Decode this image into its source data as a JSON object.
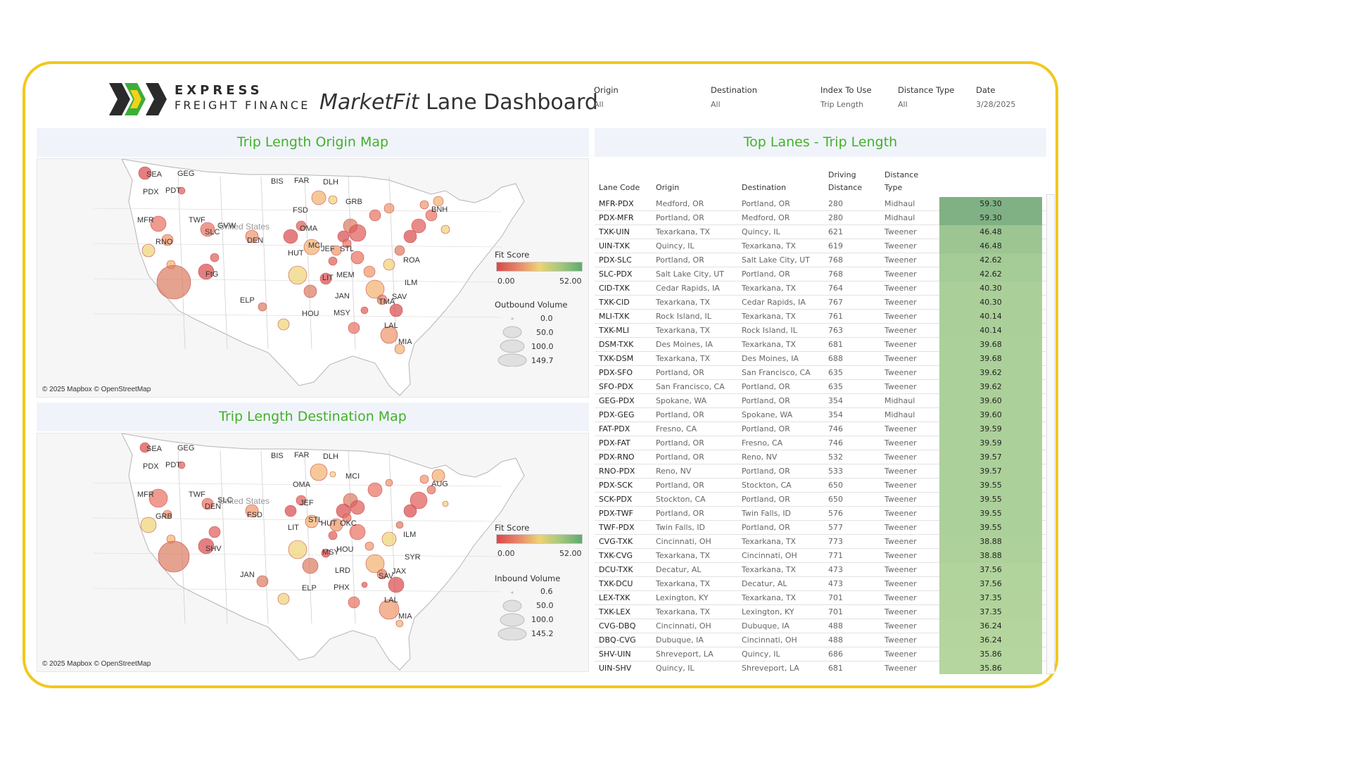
{
  "brand": {
    "line1": "EXPRESS",
    "line2": "FREIGHT FINANCE"
  },
  "title": {
    "italic": "MarketFit",
    "rest": " Lane Dashboard"
  },
  "filters": [
    {
      "label": "Origin",
      "value": "All"
    },
    {
      "label": "Destination",
      "value": "All"
    },
    {
      "label": "Index To Use",
      "value": "Trip Length"
    },
    {
      "label": "Distance Type",
      "value": "All"
    },
    {
      "label": "Date",
      "value": "3/28/2025"
    }
  ],
  "origin_map": {
    "title": "Trip Length Origin Map",
    "credit": "© 2025 Mapbox © OpenStreetMap",
    "country_label": "United States",
    "labels": [
      "SEA",
      "GEG",
      "PDX",
      "PDT",
      "BIS",
      "FAR",
      "DLH",
      "MFR",
      "TWF",
      "GVW",
      "SLC",
      "DEN",
      "RNO",
      "FSD",
      "GRB",
      "OMA",
      "MCI",
      "JEF",
      "STL",
      "HUT",
      "FtG",
      "ELP",
      "LIT",
      "MEM",
      "JAN",
      "MSY",
      "HOU",
      "TMA",
      "SAV",
      "LAL",
      "MIA",
      "ROA",
      "ILM",
      "BNH"
    ],
    "fit_score_label": "Fit Score",
    "fit_min": "0.00",
    "fit_max": "52.00",
    "volume_label": "Outbound Volume",
    "volume_values": [
      "0.0",
      "50.0",
      "100.0",
      "149.7"
    ]
  },
  "destination_map": {
    "title": "Trip Length Destination Map",
    "credit": "© 2025 Mapbox © OpenStreetMap",
    "country_label": "United States",
    "labels": [
      "SEA",
      "GEG",
      "PDX",
      "PDT",
      "BIS",
      "FAR",
      "DLH",
      "MFR",
      "TWF",
      "SLC",
      "DEN",
      "FSD",
      "GRB",
      "OMA",
      "MCI",
      "JEF",
      "STL",
      "HUT",
      "OKC",
      "LIT",
      "SHV",
      "JAN",
      "MSY",
      "HOU",
      "LRD",
      "PHX",
      "ELP",
      "SAV",
      "JAX",
      "LAL",
      "MIA",
      "ILM",
      "SYR",
      "AUG"
    ],
    "fit_score_label": "Fit Score",
    "fit_min": "0.00",
    "fit_max": "52.00",
    "volume_label": "Inbound Volume",
    "volume_values": [
      "0.6",
      "50.0",
      "100.0",
      "145.2"
    ]
  },
  "top_lanes": {
    "title": "Top Lanes - Trip Length",
    "headers": {
      "code": "Lane Code",
      "origin": "Origin",
      "destination": "Destination",
      "dist1": "Driving",
      "dist2": "Distance",
      "type1": "Distance",
      "type2": "Type"
    },
    "score_color_low": "#b5d69e",
    "score_color_high": "#7fb184",
    "rows": [
      {
        "code": "MFR-PDX",
        "origin": "Medford, OR",
        "dest": "Portland, OR",
        "dist": "280",
        "type": "Midhaul",
        "score": "59.30"
      },
      {
        "code": "PDX-MFR",
        "origin": "Portland, OR",
        "dest": "Medford, OR",
        "dist": "280",
        "type": "Midhaul",
        "score": "59.30"
      },
      {
        "code": "TXK-UIN",
        "origin": "Texarkana, TX",
        "dest": "Quincy, IL",
        "dist": "621",
        "type": "Tweener",
        "score": "46.48"
      },
      {
        "code": "UIN-TXK",
        "origin": "Quincy, IL",
        "dest": "Texarkana, TX",
        "dist": "619",
        "type": "Tweener",
        "score": "46.48"
      },
      {
        "code": "PDX-SLC",
        "origin": "Portland, OR",
        "dest": "Salt Lake City, UT",
        "dist": "768",
        "type": "Tweener",
        "score": "42.62"
      },
      {
        "code": "SLC-PDX",
        "origin": "Salt Lake City, UT",
        "dest": "Portland, OR",
        "dist": "768",
        "type": "Tweener",
        "score": "42.62"
      },
      {
        "code": "CID-TXK",
        "origin": "Cedar Rapids, IA",
        "dest": "Texarkana, TX",
        "dist": "764",
        "type": "Tweener",
        "score": "40.30"
      },
      {
        "code": "TXK-CID",
        "origin": "Texarkana, TX",
        "dest": "Cedar Rapids, IA",
        "dist": "767",
        "type": "Tweener",
        "score": "40.30"
      },
      {
        "code": "MLI-TXK",
        "origin": "Rock Island, IL",
        "dest": "Texarkana, TX",
        "dist": "761",
        "type": "Tweener",
        "score": "40.14"
      },
      {
        "code": "TXK-MLI",
        "origin": "Texarkana, TX",
        "dest": "Rock Island, IL",
        "dist": "763",
        "type": "Tweener",
        "score": "40.14"
      },
      {
        "code": "DSM-TXK",
        "origin": "Des Moines, IA",
        "dest": "Texarkana, TX",
        "dist": "681",
        "type": "Tweener",
        "score": "39.68"
      },
      {
        "code": "TXK-DSM",
        "origin": "Texarkana, TX",
        "dest": "Des Moines, IA",
        "dist": "688",
        "type": "Tweener",
        "score": "39.68"
      },
      {
        "code": "PDX-SFO",
        "origin": "Portland, OR",
        "dest": "San Francisco, CA",
        "dist": "635",
        "type": "Tweener",
        "score": "39.62"
      },
      {
        "code": "SFO-PDX",
        "origin": "San Francisco, CA",
        "dest": "Portland, OR",
        "dist": "635",
        "type": "Tweener",
        "score": "39.62"
      },
      {
        "code": "GEG-PDX",
        "origin": "Spokane, WA",
        "dest": "Portland, OR",
        "dist": "354",
        "type": "Midhaul",
        "score": "39.60"
      },
      {
        "code": "PDX-GEG",
        "origin": "Portland, OR",
        "dest": "Spokane, WA",
        "dist": "354",
        "type": "Midhaul",
        "score": "39.60"
      },
      {
        "code": "FAT-PDX",
        "origin": "Fresno, CA",
        "dest": "Portland, OR",
        "dist": "746",
        "type": "Tweener",
        "score": "39.59"
      },
      {
        "code": "PDX-FAT",
        "origin": "Portland, OR",
        "dest": "Fresno, CA",
        "dist": "746",
        "type": "Tweener",
        "score": "39.59"
      },
      {
        "code": "PDX-RNO",
        "origin": "Portland, OR",
        "dest": "Reno, NV",
        "dist": "532",
        "type": "Tweener",
        "score": "39.57"
      },
      {
        "code": "RNO-PDX",
        "origin": "Reno, NV",
        "dest": "Portland, OR",
        "dist": "533",
        "type": "Tweener",
        "score": "39.57"
      },
      {
        "code": "PDX-SCK",
        "origin": "Portland, OR",
        "dest": "Stockton, CA",
        "dist": "650",
        "type": "Tweener",
        "score": "39.55"
      },
      {
        "code": "SCK-PDX",
        "origin": "Stockton, CA",
        "dest": "Portland, OR",
        "dist": "650",
        "type": "Tweener",
        "score": "39.55"
      },
      {
        "code": "PDX-TWF",
        "origin": "Portland, OR",
        "dest": "Twin Falls, ID",
        "dist": "576",
        "type": "Tweener",
        "score": "39.55"
      },
      {
        "code": "TWF-PDX",
        "origin": "Twin Falls, ID",
        "dest": "Portland, OR",
        "dist": "577",
        "type": "Tweener",
        "score": "39.55"
      },
      {
        "code": "CVG-TXK",
        "origin": "Cincinnati, OH",
        "dest": "Texarkana, TX",
        "dist": "773",
        "type": "Tweener",
        "score": "38.88"
      },
      {
        "code": "TXK-CVG",
        "origin": "Texarkana, TX",
        "dest": "Cincinnati, OH",
        "dist": "771",
        "type": "Tweener",
        "score": "38.88"
      },
      {
        "code": "DCU-TXK",
        "origin": "Decatur, AL",
        "dest": "Texarkana, TX",
        "dist": "473",
        "type": "Tweener",
        "score": "37.56"
      },
      {
        "code": "TXK-DCU",
        "origin": "Texarkana, TX",
        "dest": "Decatur, AL",
        "dist": "473",
        "type": "Tweener",
        "score": "37.56"
      },
      {
        "code": "LEX-TXK",
        "origin": "Lexington, KY",
        "dest": "Texarkana, TX",
        "dist": "701",
        "type": "Tweener",
        "score": "37.35"
      },
      {
        "code": "TXK-LEX",
        "origin": "Texarkana, TX",
        "dest": "Lexington, KY",
        "dist": "701",
        "type": "Tweener",
        "score": "37.35"
      },
      {
        "code": "CVG-DBQ",
        "origin": "Cincinnati, OH",
        "dest": "Dubuque, IA",
        "dist": "488",
        "type": "Tweener",
        "score": "36.24"
      },
      {
        "code": "DBQ-CVG",
        "origin": "Dubuque, IA",
        "dest": "Cincinnati, OH",
        "dist": "488",
        "type": "Tweener",
        "score": "36.24"
      },
      {
        "code": "SHV-UIN",
        "origin": "Shreveport, LA",
        "dest": "Quincy, IL",
        "dist": "686",
        "type": "Tweener",
        "score": "35.86"
      },
      {
        "code": "UIN-SHV",
        "origin": "Quincy, IL",
        "dest": "Shreveport, LA",
        "dist": "681",
        "type": "Tweener",
        "score": "35.86"
      }
    ]
  }
}
